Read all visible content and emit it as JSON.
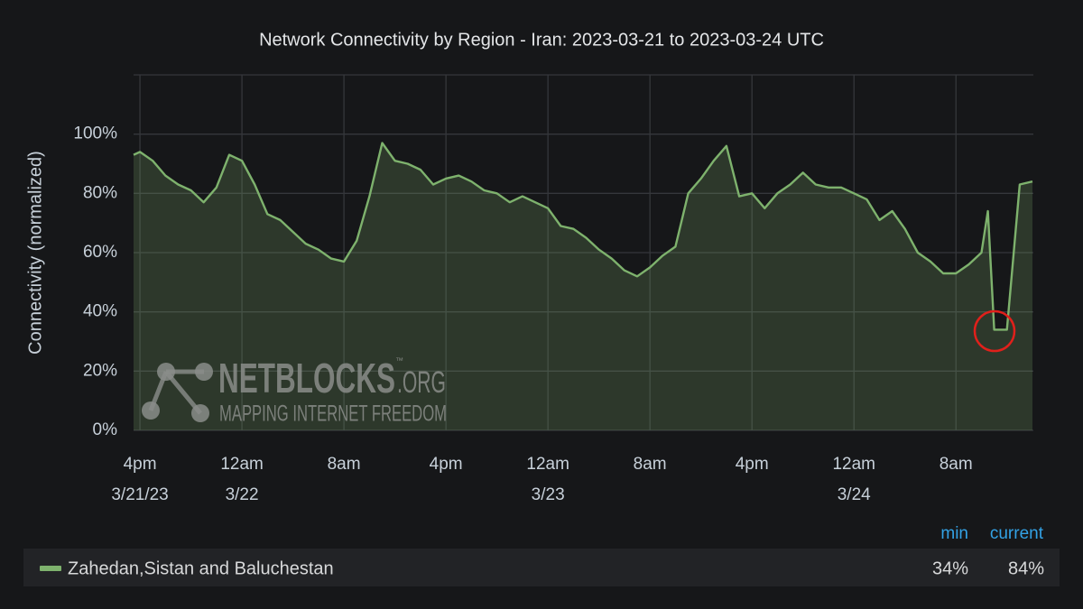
{
  "chart_data": {
    "type": "line",
    "title": "Network Connectivity by Region - Iran: 2023-03-21 to 2023-03-24 UTC",
    "y_label": "Connectivity (normalized)",
    "x": [
      "2023-03-21 15:30",
      "2023-03-21 16:00",
      "2023-03-21 17:00",
      "2023-03-21 18:00",
      "2023-03-21 19:00",
      "2023-03-21 20:00",
      "2023-03-21 21:00",
      "2023-03-21 22:00",
      "2023-03-21 23:00",
      "2023-03-22 00:00",
      "2023-03-22 01:00",
      "2023-03-22 02:00",
      "2023-03-22 03:00",
      "2023-03-22 04:00",
      "2023-03-22 05:00",
      "2023-03-22 06:00",
      "2023-03-22 07:00",
      "2023-03-22 08:00",
      "2023-03-22 09:00",
      "2023-03-22 10:00",
      "2023-03-22 11:00",
      "2023-03-22 12:00",
      "2023-03-22 13:00",
      "2023-03-22 14:00",
      "2023-03-22 15:00",
      "2023-03-22 16:00",
      "2023-03-22 17:00",
      "2023-03-22 18:00",
      "2023-03-22 19:00",
      "2023-03-22 20:00",
      "2023-03-22 21:00",
      "2023-03-22 22:00",
      "2023-03-22 23:00",
      "2023-03-23 00:00",
      "2023-03-23 01:00",
      "2023-03-23 02:00",
      "2023-03-23 03:00",
      "2023-03-23 04:00",
      "2023-03-23 05:00",
      "2023-03-23 06:00",
      "2023-03-23 07:00",
      "2023-03-23 08:00",
      "2023-03-23 09:00",
      "2023-03-23 10:00",
      "2023-03-23 11:00",
      "2023-03-23 12:00",
      "2023-03-23 13:00",
      "2023-03-23 14:00",
      "2023-03-23 15:00",
      "2023-03-23 16:00",
      "2023-03-23 17:00",
      "2023-03-23 18:00",
      "2023-03-23 19:00",
      "2023-03-23 20:00",
      "2023-03-23 21:00",
      "2023-03-23 22:00",
      "2023-03-23 23:00",
      "2023-03-24 00:00",
      "2023-03-24 01:00",
      "2023-03-24 02:00",
      "2023-03-24 03:00",
      "2023-03-24 04:00",
      "2023-03-24 05:00",
      "2023-03-24 06:00",
      "2023-03-24 07:00",
      "2023-03-24 08:00",
      "2023-03-24 09:00",
      "2023-03-24 10:00",
      "2023-03-24 10:30",
      "2023-03-24 11:00",
      "2023-03-24 12:00",
      "2023-03-24 13:00",
      "2023-03-24 14:00"
    ],
    "series": [
      {
        "name": "Zahedan,Sistan and Baluchestan",
        "color": "#7eb26d",
        "values": [
          93,
          94,
          91,
          86,
          83,
          81,
          77,
          82,
          93,
          91,
          83,
          73,
          71,
          67,
          63,
          61,
          58,
          57,
          64,
          79,
          97,
          91,
          90,
          88,
          83,
          85,
          86,
          84,
          81,
          80,
          77,
          79,
          77,
          75,
          69,
          68,
          65,
          61,
          58,
          54,
          52,
          55,
          59,
          62,
          80,
          85,
          91,
          96,
          79,
          80,
          75,
          80,
          83,
          87,
          83,
          82,
          82,
          80,
          78,
          71,
          74,
          68,
          60,
          57,
          53,
          53,
          56,
          60,
          74,
          34,
          34,
          83,
          84
        ]
      }
    ],
    "xlim": [
      "2023-03-21 15:30",
      "2023-03-24 14:00"
    ],
    "xticks": [
      {
        "value": "2023-03-21 16:00",
        "label": [
          "4pm",
          "3/21/23"
        ]
      },
      {
        "value": "2023-03-22 00:00",
        "label": [
          "12am",
          "3/22"
        ]
      },
      {
        "value": "2023-03-22 08:00",
        "label": [
          "8am"
        ]
      },
      {
        "value": "2023-03-22 16:00",
        "label": [
          "4pm"
        ]
      },
      {
        "value": "2023-03-23 00:00",
        "label": [
          "12am",
          "3/23"
        ]
      },
      {
        "value": "2023-03-23 08:00",
        "label": [
          "8am"
        ]
      },
      {
        "value": "2023-03-23 16:00",
        "label": [
          "4pm"
        ]
      },
      {
        "value": "2023-03-24 00:00",
        "label": [
          "12am",
          "3/24"
        ]
      },
      {
        "value": "2023-03-24 08:00",
        "label": [
          "8am"
        ]
      }
    ],
    "ylim": [
      0,
      120
    ],
    "yticks": [
      {
        "value": 0,
        "label": "0%"
      },
      {
        "value": 20,
        "label": "20%"
      },
      {
        "value": 40,
        "label": "40%"
      },
      {
        "value": 60,
        "label": "60%"
      },
      {
        "value": 80,
        "label": "80%"
      },
      {
        "value": 100,
        "label": "100%"
      }
    ],
    "grid": true,
    "legend": {
      "headers": [
        "min",
        "current"
      ],
      "values": [
        34,
        84
      ],
      "value_labels": [
        "34%",
        "84%"
      ]
    },
    "watermark": {
      "brand": "NETBLOCKS",
      "suffix": ".ORG",
      "tm": "™",
      "tagline": "MAPPING INTERNET FREEDOM"
    }
  }
}
